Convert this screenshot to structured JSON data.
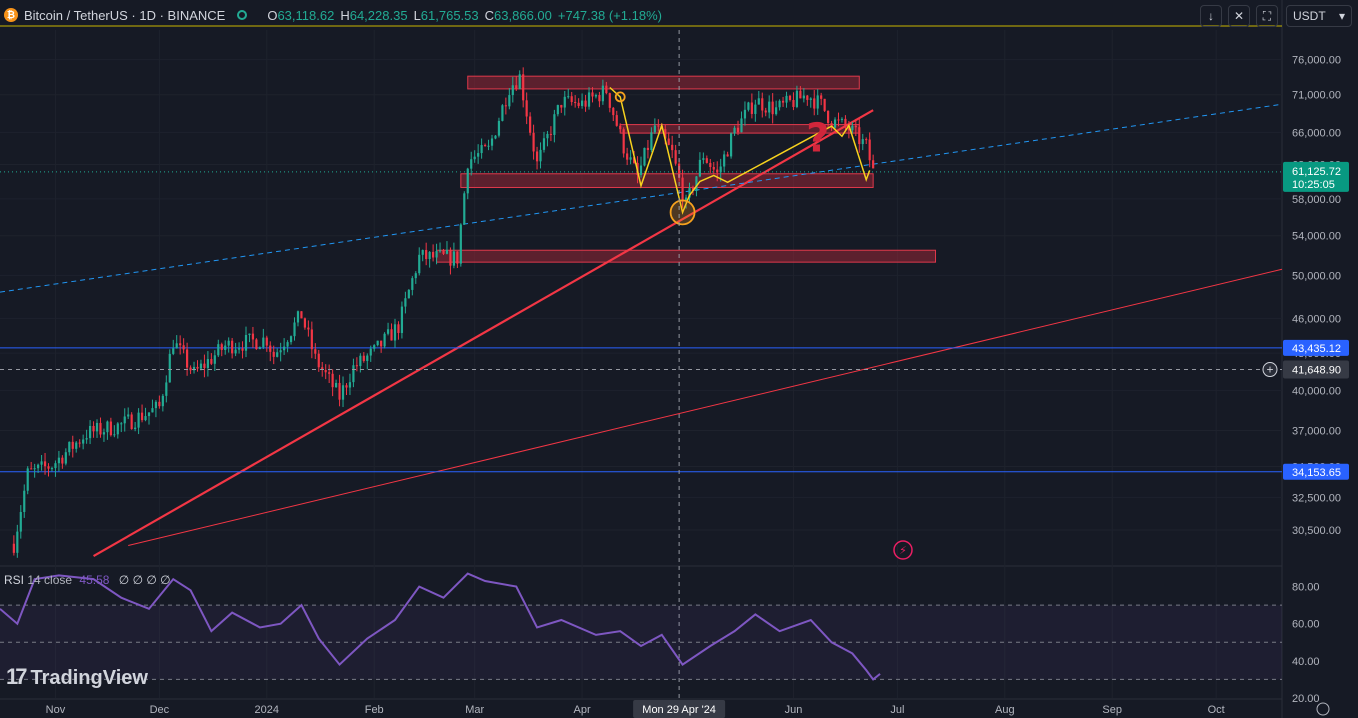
{
  "header": {
    "symbol": "Bitcoin / TetherUS · 1D · BINANCE",
    "coin_glyph": "₿",
    "open_label": "O",
    "open": "63,118.62",
    "high_label": "H",
    "high": "64,228.35",
    "low_label": "L",
    "low": "61,765.53",
    "close_label": "C",
    "close": "63,866.00",
    "change": "+747.38 (+1.18%)",
    "currency": "USDT"
  },
  "toolbar": {
    "icons": [
      "arrow-down-icon",
      "collapse-icon",
      "fullscreen-icon"
    ]
  },
  "rsi": {
    "label": "RSI",
    "settings": "14 close",
    "value": "45.58",
    "extras": "∅ ∅ ∅ ∅"
  },
  "brand": {
    "mark": "17",
    "name": "TradingView"
  },
  "colors": {
    "background": "#161a25",
    "up": "#22ab94",
    "down": "#f23645",
    "trend": "#f23645",
    "zone": "#b2283a",
    "pattern": "#f7d21e",
    "rsi": "#7e57c2",
    "support": "#2962ff",
    "dashed": "#2196f3"
  },
  "chart_data": {
    "type": "candlestick",
    "title": "Bitcoin / TetherUS · 1D · BINANCE",
    "y_scale": "log",
    "ylim": [
      28500,
      80500
    ],
    "y_ticks": [
      30500,
      32500,
      34500,
      37000,
      40000,
      43000,
      46000,
      50000,
      54000,
      58000,
      62000,
      66000,
      71000,
      76000
    ],
    "y_tick_labels": [
      "30,500.00",
      "32,500.00",
      "34,500.00",
      "37,000.00",
      "40,000.00",
      "43,000.00",
      "46,000.00",
      "50,000.00",
      "54,000.00",
      "58,000.00",
      "62,000.00",
      "66,000.00",
      "71,000.00",
      "76,000.00"
    ],
    "x_range": [
      "2023-10-16",
      "2024-10-20"
    ],
    "x_ticks": [
      {
        "date": "2023-11-01",
        "label": "Nov"
      },
      {
        "date": "2023-12-01",
        "label": "Dec"
      },
      {
        "date": "2024-01-01",
        "label": "2024"
      },
      {
        "date": "2024-02-01",
        "label": "Feb"
      },
      {
        "date": "2024-03-01",
        "label": "Mar"
      },
      {
        "date": "2024-04-01",
        "label": "Apr"
      },
      {
        "date": "2024-06-01",
        "label": "Jun"
      },
      {
        "date": "2024-07-01",
        "label": "Jul"
      },
      {
        "date": "2024-08-01",
        "label": "Aug"
      },
      {
        "date": "2024-09-01",
        "label": "Sep"
      },
      {
        "date": "2024-10-01",
        "label": "Oct"
      }
    ],
    "crosshair": {
      "date": "2024-04-29",
      "label": "Mon 29 Apr '24",
      "price": 41648.9,
      "price_label": "41,648.90"
    },
    "price_marker": {
      "price": 61125.72,
      "label": "61,125.72",
      "countdown": "10:25:05"
    },
    "horizontal_lines": [
      {
        "price": 43435.12,
        "label": "43,435.12"
      },
      {
        "price": 34153.65,
        "label": "34,153.65"
      }
    ],
    "close_path": [
      [
        "2023-10-20",
        29700
      ],
      [
        "2023-10-24",
        34000
      ],
      [
        "2023-10-31",
        34600
      ],
      [
        "2023-11-10",
        36800
      ],
      [
        "2023-11-20",
        37400
      ],
      [
        "2023-12-01",
        38700
      ],
      [
        "2023-12-05",
        44000
      ],
      [
        "2023-12-11",
        41300
      ],
      [
        "2023-12-20",
        43600
      ],
      [
        "2024-01-01",
        44200
      ],
      [
        "2024-01-03",
        42800
      ],
      [
        "2024-01-11",
        46300
      ],
      [
        "2024-01-15",
        42500
      ],
      [
        "2024-01-22",
        39500
      ],
      [
        "2024-01-26",
        41800
      ],
      [
        "2024-02-01",
        43100
      ],
      [
        "2024-02-08",
        45300
      ],
      [
        "2024-02-14",
        51800
      ],
      [
        "2024-02-25",
        51700
      ],
      [
        "2024-02-28",
        62500
      ],
      [
        "2024-03-05",
        63800
      ],
      [
        "2024-03-11",
        72100
      ],
      [
        "2024-03-14",
        73500
      ],
      [
        "2024-03-19",
        62000
      ],
      [
        "2024-03-26",
        70000
      ],
      [
        "2024-04-01",
        69700
      ],
      [
        "2024-04-08",
        71600
      ],
      [
        "2024-04-13",
        64200
      ],
      [
        "2024-04-17",
        60500
      ],
      [
        "2024-04-22",
        66800
      ],
      [
        "2024-04-27",
        63300
      ],
      [
        "2024-05-01",
        57200
      ],
      [
        "2024-05-06",
        63200
      ],
      [
        "2024-05-10",
        60800
      ],
      [
        "2024-05-15",
        66200
      ],
      [
        "2024-05-21",
        70200
      ],
      [
        "2024-05-27",
        69000
      ],
      [
        "2024-06-05",
        71000
      ],
      [
        "2024-06-09",
        69600
      ],
      [
        "2024-06-12",
        67500
      ],
      [
        "2024-06-17",
        66500
      ],
      [
        "2024-06-22",
        64200
      ],
      [
        "2024-06-24",
        61125.72
      ]
    ],
    "zones": [
      {
        "from": "2024-02-28",
        "to": "2024-06-20",
        "low": 71800,
        "high": 73600
      },
      {
        "from": "2024-04-12",
        "to": "2024-06-20",
        "low": 65900,
        "high": 67000
      },
      {
        "from": "2024-02-26",
        "to": "2024-06-24",
        "low": 59300,
        "high": 60900
      },
      {
        "from": "2024-02-19",
        "to": "2024-07-12",
        "low": 51300,
        "high": 52500
      }
    ],
    "trendlines": [
      {
        "style": "solid-thick",
        "from": [
          "2023-11-12",
          29000
        ],
        "to": [
          "2024-06-24",
          68900
        ]
      },
      {
        "style": "solid-thin",
        "from": [
          "2023-11-22",
          29600
        ],
        "to": [
          "2024-10-20",
          50600
        ]
      },
      {
        "style": "dashed",
        "from": [
          "2023-10-16",
          48400
        ],
        "to": [
          "2024-10-20",
          69700
        ]
      }
    ],
    "pattern_path": [
      [
        "2024-04-09",
        72000
      ],
      [
        "2024-04-12",
        70700
      ],
      [
        "2024-04-18",
        59500
      ],
      [
        "2024-04-24",
        66900
      ],
      [
        "2024-04-30",
        56500
      ],
      [
        "2024-05-02",
        58400
      ],
      [
        "2024-05-05",
        60000
      ],
      [
        "2024-05-09",
        60700
      ],
      [
        "2024-05-13",
        59900
      ],
      [
        "2024-06-12",
        66800
      ],
      [
        "2024-06-15",
        65500
      ],
      [
        "2024-06-17",
        66900
      ],
      [
        "2024-06-22",
        60200
      ],
      [
        "2024-06-23",
        61300
      ]
    ],
    "circles": [
      {
        "date": "2024-04-30",
        "price": 56500
      },
      {
        "date": "2024-04-12",
        "price": 70700
      }
    ],
    "question_mark": {
      "date": "2024-06-08",
      "price": 63600
    },
    "rsi_series": {
      "ylim": [
        20,
        90
      ],
      "ticks": [
        20,
        40,
        60,
        80
      ],
      "tick_labels": [
        "20.00",
        "40.00",
        "60.00",
        "80.00"
      ],
      "levels": [
        70,
        50,
        30
      ],
      "values": [
        [
          "2023-10-16",
          68
        ],
        [
          "2023-10-21",
          60
        ],
        [
          "2023-10-26",
          84
        ],
        [
          "2023-11-02",
          86
        ],
        [
          "2023-11-12",
          84
        ],
        [
          "2023-11-20",
          74
        ],
        [
          "2023-11-28",
          68
        ],
        [
          "2023-12-05",
          84
        ],
        [
          "2023-12-10",
          78
        ],
        [
          "2023-12-16",
          56
        ],
        [
          "2023-12-22",
          66
        ],
        [
          "2023-12-30",
          58
        ],
        [
          "2024-01-05",
          60
        ],
        [
          "2024-01-11",
          70
        ],
        [
          "2024-01-16",
          52
        ],
        [
          "2024-01-22",
          38
        ],
        [
          "2024-01-30",
          52
        ],
        [
          "2024-02-07",
          62
        ],
        [
          "2024-02-14",
          80
        ],
        [
          "2024-02-21",
          74
        ],
        [
          "2024-02-28",
          87
        ],
        [
          "2024-03-04",
          83
        ],
        [
          "2024-03-13",
          80
        ],
        [
          "2024-03-19",
          58
        ],
        [
          "2024-03-26",
          62
        ],
        [
          "2024-04-05",
          54
        ],
        [
          "2024-04-12",
          56
        ],
        [
          "2024-04-18",
          48
        ],
        [
          "2024-04-24",
          54
        ],
        [
          "2024-04-30",
          38
        ],
        [
          "2024-05-08",
          48
        ],
        [
          "2024-05-15",
          56
        ],
        [
          "2024-05-21",
          65
        ],
        [
          "2024-05-28",
          56
        ],
        [
          "2024-06-06",
          62
        ],
        [
          "2024-06-12",
          50
        ],
        [
          "2024-06-18",
          44
        ],
        [
          "2024-06-22",
          35
        ],
        [
          "2024-06-24",
          30
        ],
        [
          "2024-06-26",
          33
        ]
      ]
    }
  }
}
